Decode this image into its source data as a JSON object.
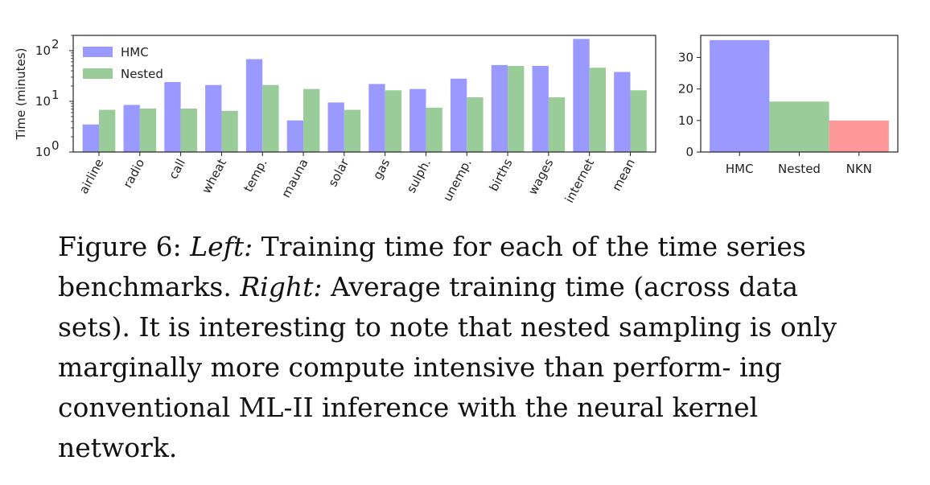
{
  "chart_data": [
    {
      "type": "bar",
      "ylabel": "Time (minutes)",
      "yscale": "log",
      "ylim": [
        1,
        200
      ],
      "yticks": [
        {
          "value": 1,
          "base": "10",
          "exp": "0"
        },
        {
          "value": 10,
          "base": "10",
          "exp": "1"
        },
        {
          "value": 100,
          "base": "10",
          "exp": "2"
        }
      ],
      "categories": [
        "airline",
        "radio",
        "call",
        "wheat",
        "temp.",
        "mauna",
        "solar",
        "gas",
        "sulph.",
        "unemp.",
        "births",
        "wages",
        "internet",
        "mean"
      ],
      "series": [
        {
          "name": "HMC",
          "color": "#9999ff",
          "values": [
            3.5,
            8.5,
            24,
            21,
            68,
            4.2,
            9.5,
            22,
            17.5,
            28,
            52,
            50,
            170,
            38
          ]
        },
        {
          "name": "Nested",
          "color": "#99cc99",
          "values": [
            6.8,
            7.2,
            7.2,
            6.5,
            21,
            17.5,
            6.8,
            16.5,
            7.5,
            12,
            50,
            12,
            46,
            16.5
          ]
        }
      ],
      "legend": "top-left"
    },
    {
      "type": "bar",
      "ylim": [
        0,
        37
      ],
      "yticks": [
        0,
        10,
        20,
        30
      ],
      "categories": [
        "HMC",
        "Nested",
        "NKN"
      ],
      "values": [
        35.5,
        16,
        10
      ],
      "colors": [
        "#9999ff",
        "#99cc99",
        "#ff9999"
      ]
    }
  ],
  "caption": {
    "label": "Figure 6:",
    "left_label": "Left:",
    "left_text": "Training time for each of the time series benchmarks.",
    "right_label": "Right:",
    "right_text": "Average training time (across data sets). It is interesting to note that nested sampling is only marginally more compute intensive than perform- ing conventional ML-II inference with the neural kernel network."
  }
}
